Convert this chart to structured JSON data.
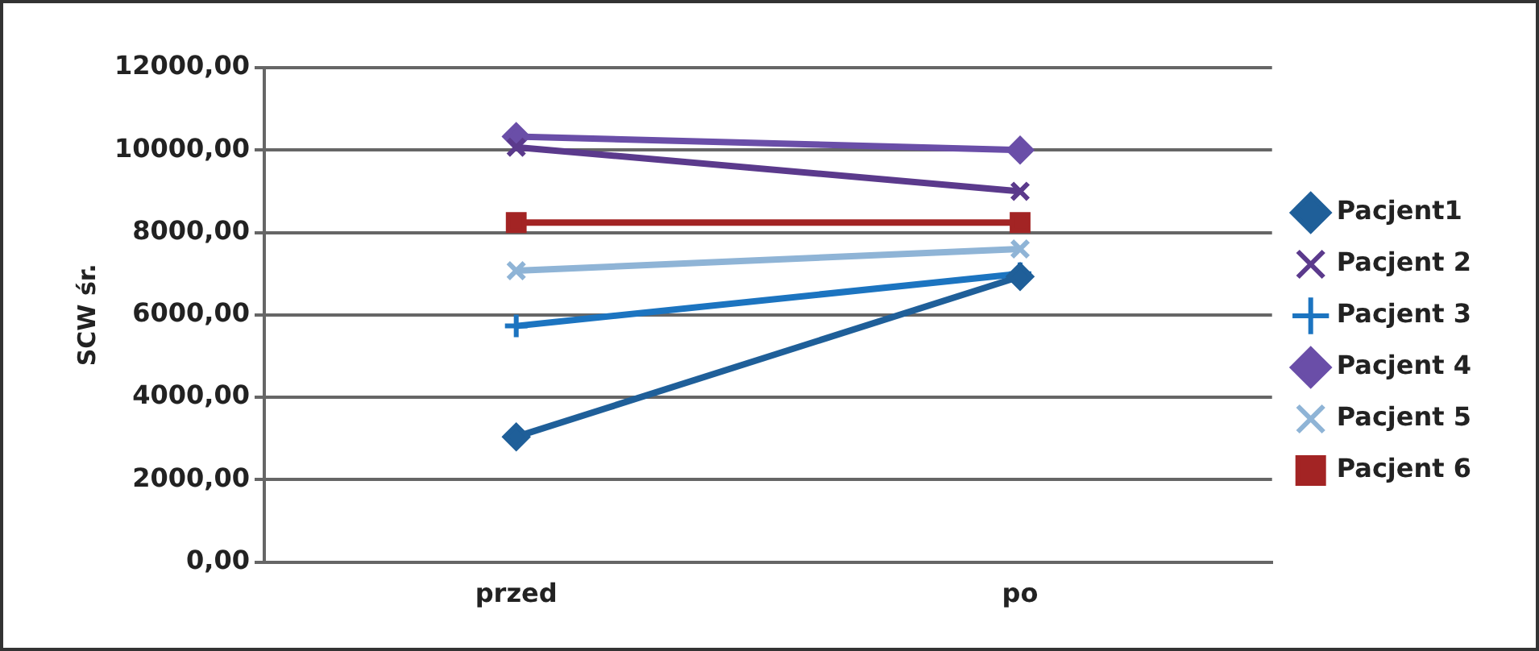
{
  "chart_data": {
    "type": "line",
    "ylabel": "SCW śr.",
    "categories": [
      "przed",
      "po"
    ],
    "series": [
      {
        "name": "Pacjent1",
        "color": "#1f5f99",
        "values": [
          3040,
          6930
        ],
        "marker": "diamond"
      },
      {
        "name": "Pacjent 2",
        "color": "#5b3a8c",
        "values": [
          10070,
          9000
        ],
        "marker": "cross"
      },
      {
        "name": "Pacjent 3",
        "color": "#1c74c0",
        "values": [
          5730,
          7000
        ],
        "marker": "plus"
      },
      {
        "name": "Pacjent 4",
        "color": "#6a4ea8",
        "values": [
          10330,
          10000
        ],
        "marker": "diamond"
      },
      {
        "name": "Pacjent 5",
        "color": "#8fb4d6",
        "values": [
          7070,
          7600
        ],
        "marker": "cross"
      },
      {
        "name": "Pacjent 6",
        "color": "#a32424",
        "values": [
          8240,
          8240
        ],
        "marker": "square"
      }
    ],
    "ylim": [
      0,
      12000
    ],
    "yticks": [
      {
        "value": 0,
        "label": "0,00"
      },
      {
        "value": 2000,
        "label": "2000,00"
      },
      {
        "value": 4000,
        "label": "4000,00"
      },
      {
        "value": 6000,
        "label": "6000,00"
      },
      {
        "value": 8000,
        "label": "8000,00"
      },
      {
        "value": 10000,
        "label": "10000,00"
      },
      {
        "value": 12000,
        "label": "12000,00"
      }
    ],
    "grid": "y",
    "legend": "right",
    "line_style": "solid"
  }
}
